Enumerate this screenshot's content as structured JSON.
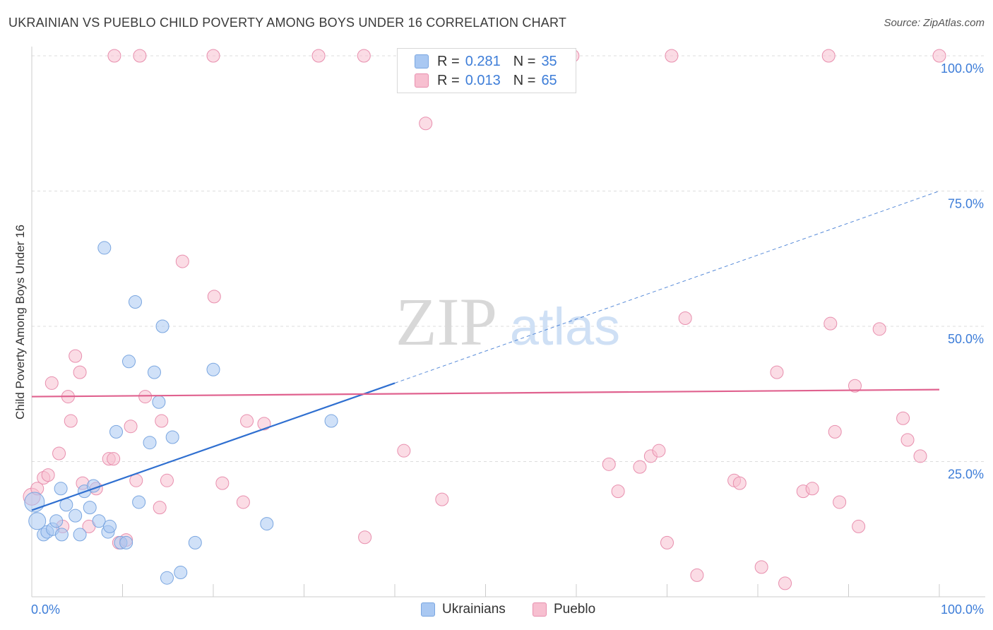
{
  "title": "UKRAINIAN VS PUEBLO CHILD POVERTY AMONG BOYS UNDER 16 CORRELATION CHART",
  "source": "Source: ZipAtlas.com",
  "watermark": {
    "zip": "ZIP",
    "atlas": "atlas"
  },
  "colors": {
    "blue_fill": "#a9c8f2",
    "blue_stroke": "#7aa6e0",
    "blue_line": "#2f6fd0",
    "pink_fill": "#f7bfd0",
    "pink_stroke": "#e88fae",
    "pink_line": "#e0628f",
    "grid": "#dddddd",
    "tick_text": "#3d7dd8"
  },
  "legend": {
    "rows": [
      {
        "r_label": "R =",
        "r_value": "0.281",
        "n_label": "N =",
        "n_value": "35"
      },
      {
        "r_label": "R =",
        "r_value": "0.013",
        "n_label": "N =",
        "n_value": "65"
      }
    ]
  },
  "bottom_legend": [
    "Ukrainians",
    "Pueblo"
  ],
  "chart_data": {
    "type": "scatter",
    "title": "UKRAINIAN VS PUEBLO CHILD POVERTY AMONG BOYS UNDER 16 CORRELATION CHART",
    "xlabel": "",
    "ylabel": "Child Poverty Among Boys Under 16",
    "xlim": [
      0,
      100
    ],
    "ylim": [
      0,
      100
    ],
    "x_tick_labels": [
      "0.0%",
      "100.0%"
    ],
    "y_ticks": [
      25,
      50,
      75,
      100
    ],
    "y_tick_labels": [
      "25.0%",
      "50.0%",
      "75.0%",
      "100.0%"
    ],
    "series": [
      {
        "name": "Ukrainians",
        "R": 0.281,
        "N": 35,
        "trend": {
          "x0": 0,
          "y0": 16.0,
          "x1": 40,
          "y1": 39.5,
          "dash_to_x": 100,
          "dash_to_y": 75.0
        },
        "points": [
          [
            0.3,
            17.5,
            14
          ],
          [
            0.6,
            14.0,
            12
          ],
          [
            1.3,
            11.5,
            9
          ],
          [
            1.7,
            12.0,
            9
          ],
          [
            2.3,
            12.5,
            9
          ],
          [
            2.7,
            14.0,
            9
          ],
          [
            3.3,
            11.5,
            9
          ],
          [
            3.8,
            17.0,
            9
          ],
          [
            4.8,
            15.0,
            9
          ],
          [
            5.3,
            11.5,
            9
          ],
          [
            5.8,
            19.5,
            9
          ],
          [
            6.4,
            16.5,
            9
          ],
          [
            6.8,
            20.5,
            9
          ],
          [
            7.4,
            14.0,
            9
          ],
          [
            8.0,
            64.5,
            9
          ],
          [
            8.4,
            12.0,
            9
          ],
          [
            8.6,
            13.0,
            9
          ],
          [
            9.3,
            30.5,
            9
          ],
          [
            9.8,
            10.0,
            9
          ],
          [
            10.4,
            10.0,
            9
          ],
          [
            10.7,
            43.5,
            9
          ],
          [
            11.4,
            54.5,
            9
          ],
          [
            11.8,
            17.5,
            9
          ],
          [
            13.0,
            28.5,
            9
          ],
          [
            13.5,
            41.5,
            9
          ],
          [
            14.0,
            36.0,
            9
          ],
          [
            14.4,
            50.0,
            9
          ],
          [
            14.9,
            3.5,
            9
          ],
          [
            15.5,
            29.5,
            9
          ],
          [
            16.4,
            4.5,
            9
          ],
          [
            18.0,
            10.0,
            9
          ],
          [
            20.0,
            42.0,
            9
          ],
          [
            25.9,
            13.5,
            9
          ],
          [
            33.0,
            32.5,
            9
          ],
          [
            3.2,
            20.0,
            9
          ]
        ]
      },
      {
        "name": "Pueblo",
        "R": 0.013,
        "N": 65,
        "trend": {
          "x0": 0,
          "y0": 37.0,
          "x1": 100,
          "y1": 38.3
        },
        "points": [
          [
            0.0,
            18.5,
            12
          ],
          [
            0.6,
            20.0,
            9
          ],
          [
            1.3,
            22.0,
            9
          ],
          [
            1.8,
            22.5,
            9
          ],
          [
            2.2,
            39.5,
            9
          ],
          [
            3.0,
            26.5,
            9
          ],
          [
            3.4,
            13.0,
            9
          ],
          [
            4.0,
            37.0,
            9
          ],
          [
            4.3,
            32.5,
            9
          ],
          [
            4.8,
            44.5,
            9
          ],
          [
            5.3,
            41.5,
            9
          ],
          [
            5.6,
            21.0,
            9
          ],
          [
            6.3,
            13.0,
            9
          ],
          [
            7.1,
            20.0,
            9
          ],
          [
            8.5,
            25.5,
            9
          ],
          [
            9.0,
            25.5,
            9
          ],
          [
            9.6,
            10.0,
            9
          ],
          [
            10.4,
            10.5,
            9
          ],
          [
            10.9,
            31.5,
            9
          ],
          [
            11.5,
            21.5,
            9
          ],
          [
            12.5,
            37.0,
            9
          ],
          [
            14.1,
            16.5,
            9
          ],
          [
            14.3,
            32.5,
            9
          ],
          [
            14.9,
            21.5,
            9
          ],
          [
            16.6,
            62.0,
            9
          ],
          [
            20.1,
            55.5,
            9
          ],
          [
            21.0,
            21.0,
            9
          ],
          [
            23.3,
            17.5,
            9
          ],
          [
            23.7,
            32.5,
            9
          ],
          [
            25.6,
            32.0,
            9
          ],
          [
            36.7,
            11.0,
            9
          ],
          [
            41.0,
            27.0,
            9
          ],
          [
            43.4,
            87.5,
            9
          ],
          [
            45.2,
            18.0,
            9
          ],
          [
            63.6,
            24.5,
            9
          ],
          [
            64.6,
            19.5,
            9
          ],
          [
            67.0,
            24.0,
            9
          ],
          [
            68.2,
            26.0,
            9
          ],
          [
            69.1,
            27.0,
            9
          ],
          [
            70.0,
            10.0,
            9
          ],
          [
            72.0,
            51.5,
            9
          ],
          [
            73.3,
            4.0,
            9
          ],
          [
            77.4,
            21.5,
            9
          ],
          [
            78.0,
            21.0,
            9
          ],
          [
            80.4,
            5.5,
            9
          ],
          [
            82.1,
            41.5,
            9
          ],
          [
            83.0,
            2.5,
            9
          ],
          [
            85.0,
            19.5,
            9
          ],
          [
            86.0,
            20.0,
            9
          ],
          [
            88.0,
            50.5,
            9
          ],
          [
            88.5,
            30.5,
            9
          ],
          [
            89.0,
            17.5,
            9
          ],
          [
            90.7,
            39.0,
            9
          ],
          [
            91.1,
            13.0,
            9
          ],
          [
            93.4,
            49.5,
            9
          ],
          [
            96.0,
            33.0,
            9
          ],
          [
            96.5,
            29.0,
            9
          ],
          [
            97.9,
            26.0,
            9
          ],
          [
            9.1,
            100.0,
            9
          ],
          [
            11.9,
            100.0,
            9
          ],
          [
            20.0,
            100.0,
            9
          ],
          [
            31.6,
            100.0,
            9
          ],
          [
            36.6,
            100.0,
            9
          ],
          [
            59.6,
            100.0,
            9
          ],
          [
            70.5,
            100.0,
            9
          ],
          [
            87.8,
            100.0,
            9
          ],
          [
            100.0,
            100.0,
            9
          ]
        ]
      }
    ]
  }
}
